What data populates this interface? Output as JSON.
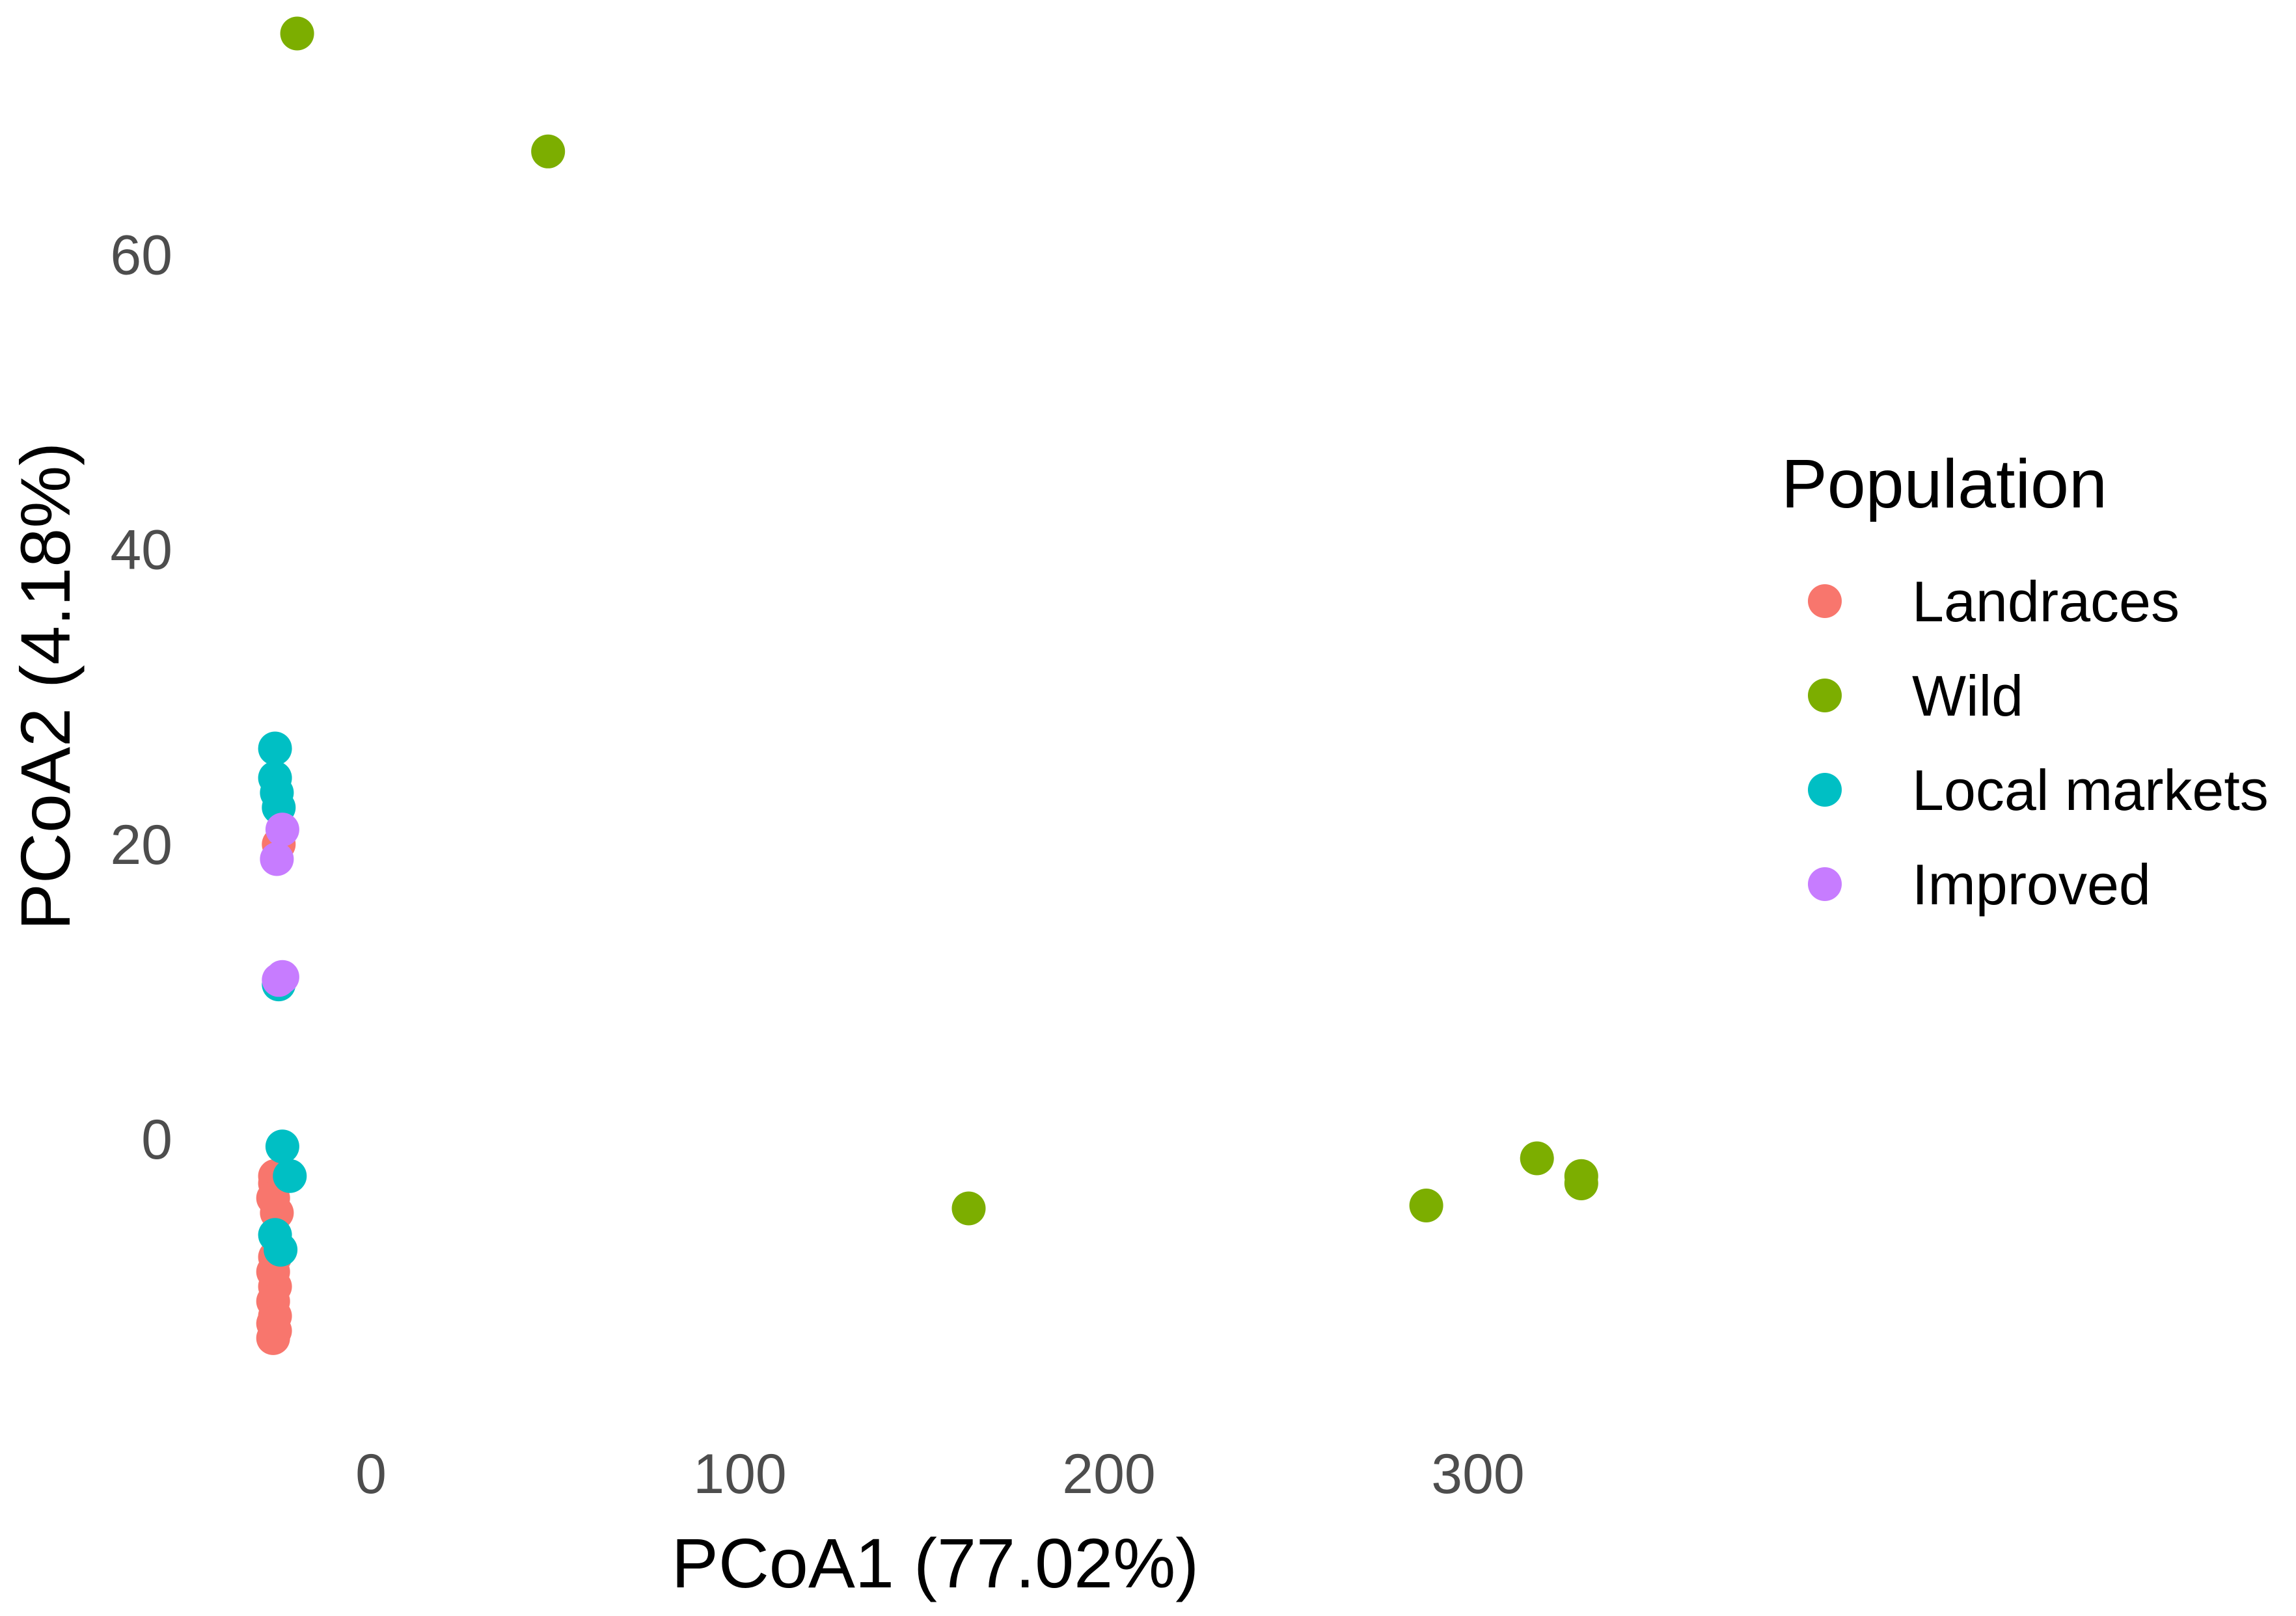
{
  "chart_data": {
    "type": "scatter",
    "xlabel": "PCoA1 (77.02%)",
    "ylabel": "PCoA2 (4.18%)",
    "xlim": [
      -30,
      340
    ],
    "ylim": [
      -15,
      75
    ],
    "x_ticks": [
      0,
      100,
      200,
      300
    ],
    "y_ticks": [
      0,
      20,
      40,
      60
    ],
    "grid": false,
    "legend": {
      "title": "Population",
      "position": "right"
    },
    "series": [
      {
        "name": "Landraces",
        "color": "#F8766D",
        "points": [
          [
            -25,
            20
          ],
          [
            -26,
            -2.5
          ],
          [
            -26,
            -3
          ],
          [
            -26.5,
            -4
          ],
          [
            -25.5,
            -5
          ],
          [
            -26,
            -8
          ],
          [
            -26.5,
            -9
          ],
          [
            -26,
            -10
          ],
          [
            -26.5,
            -11
          ],
          [
            -26,
            -12
          ],
          [
            -26.5,
            -12.5
          ],
          [
            -26,
            -13
          ],
          [
            -26.5,
            -13.5
          ]
        ]
      },
      {
        "name": "Wild",
        "color": "#7CAE00",
        "points": [
          [
            -20,
            75
          ],
          [
            48,
            67
          ],
          [
            162,
            -4.7
          ],
          [
            286,
            -4.5
          ],
          [
            316,
            -1.3
          ],
          [
            328,
            -2.5
          ],
          [
            328,
            -3
          ]
        ]
      },
      {
        "name": "Local markets",
        "color": "#00BFC4",
        "points": [
          [
            -26,
            26.5
          ],
          [
            -26,
            24.5
          ],
          [
            -25.5,
            23.5
          ],
          [
            -25,
            22.5
          ],
          [
            -25,
            10.5
          ],
          [
            -24,
            -0.5
          ],
          [
            -22,
            -2.5
          ],
          [
            -26,
            -6.5
          ],
          [
            -24.5,
            -7.5
          ]
        ]
      },
      {
        "name": "Improved",
        "color": "#C77CFF",
        "points": [
          [
            -25.5,
            19
          ],
          [
            -24,
            21
          ],
          [
            -24,
            11
          ],
          [
            -25,
            10.8
          ]
        ]
      }
    ]
  }
}
